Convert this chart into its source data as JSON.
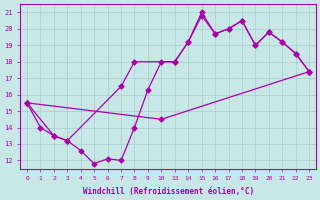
{
  "xlabel": "Windchill (Refroidissement éolien,°C)",
  "bg_color": "#c8e8e8",
  "line_color": "#aa00aa",
  "grid_color": "#aacccc",
  "ylim": [
    11.5,
    21.5
  ],
  "yticks": [
    12,
    13,
    14,
    15,
    16,
    17,
    18,
    19,
    20,
    21
  ],
  "xtick_positions": [
    0,
    1,
    2,
    3,
    4,
    5,
    6,
    7,
    8,
    9,
    10,
    11,
    12,
    13,
    14,
    15,
    16,
    17,
    18,
    19,
    20,
    21
  ],
  "xtick_labels": [
    "0",
    "1",
    "2",
    "3",
    "4",
    "5",
    "6",
    "7",
    "8",
    "9",
    "10",
    "13",
    "14",
    "15",
    "16",
    "17",
    "18",
    "19",
    "20",
    "21",
    "22",
    "23"
  ],
  "xlim": [
    -0.5,
    21.5
  ],
  "line1_x": [
    0,
    1,
    2,
    3,
    4,
    5,
    6,
    7,
    8,
    9,
    10,
    11,
    12,
    13,
    14,
    15,
    16,
    17,
    18,
    19,
    20,
    21
  ],
  "line1_y": [
    15.5,
    14.0,
    13.5,
    13.2,
    12.6,
    11.8,
    12.1,
    12.0,
    14.0,
    16.3,
    18.0,
    18.0,
    19.2,
    20.8,
    19.7,
    20.0,
    20.5,
    19.0,
    19.8,
    19.2,
    18.5,
    17.4
  ],
  "line2_x": [
    0,
    2,
    3,
    7,
    8,
    11,
    12,
    13,
    14,
    15,
    16,
    17,
    18,
    19,
    20,
    21
  ],
  "line2_y": [
    15.5,
    13.5,
    13.2,
    16.5,
    18.0,
    18.0,
    19.2,
    21.0,
    19.7,
    20.0,
    20.5,
    19.0,
    19.8,
    19.2,
    18.5,
    17.4
  ],
  "line3_x": [
    0,
    10,
    21
  ],
  "line3_y": [
    15.5,
    14.5,
    17.4
  ],
  "markersize": 2.5,
  "linewidth": 0.9
}
